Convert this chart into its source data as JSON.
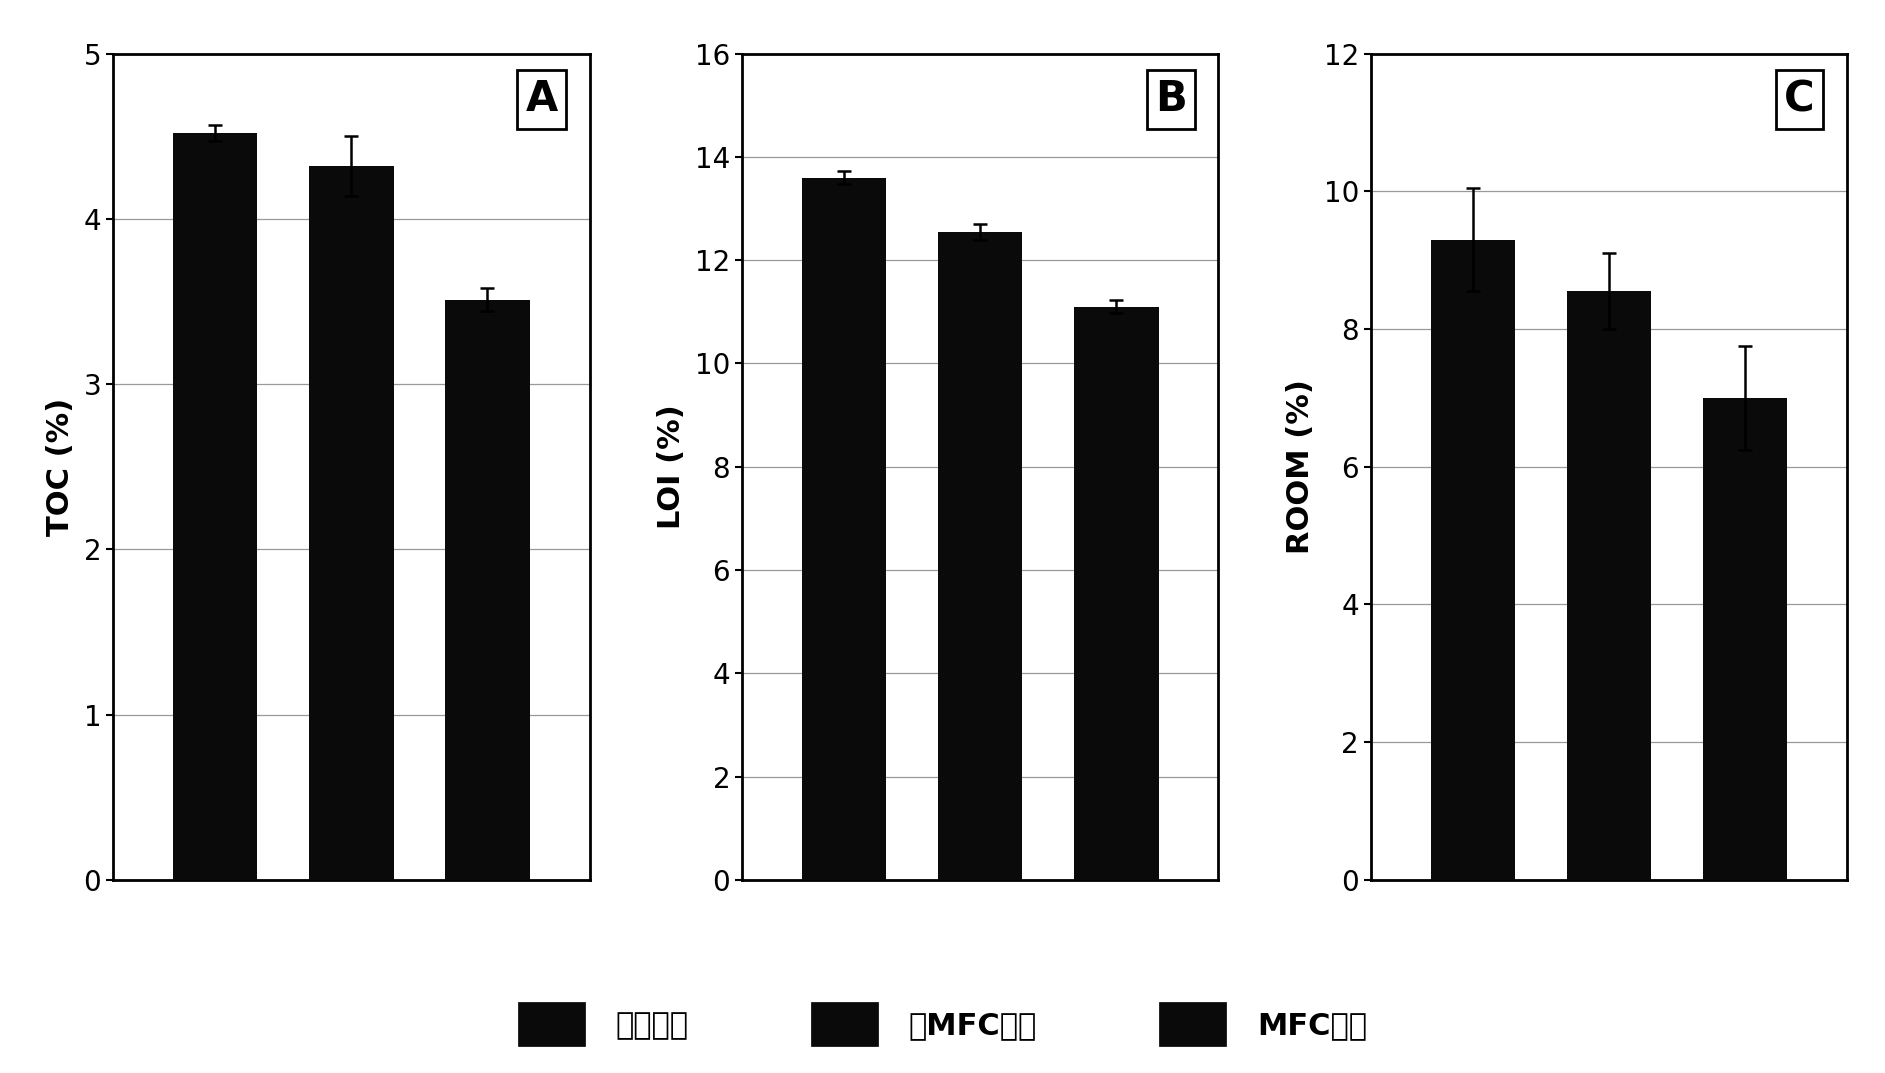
{
  "panel_A": {
    "label": "A",
    "ylabel": "TOC (%)",
    "ylim": [
      0,
      5
    ],
    "yticks": [
      0,
      1,
      2,
      3,
      4,
      5
    ],
    "values": [
      4.52,
      4.32,
      3.51
    ],
    "errors": [
      0.05,
      0.18,
      0.07
    ]
  },
  "panel_B": {
    "label": "B",
    "ylabel": "LOI (%)",
    "ylim": [
      0,
      16
    ],
    "yticks": [
      0,
      2,
      4,
      6,
      8,
      10,
      12,
      14,
      16
    ],
    "values": [
      13.6,
      12.55,
      11.1
    ],
    "errors": [
      0.12,
      0.15,
      0.12
    ]
  },
  "panel_C": {
    "label": "C",
    "ylabel": "ROOM (%)",
    "ylim": [
      0,
      12
    ],
    "yticks": [
      0,
      2,
      4,
      6,
      8,
      10,
      12
    ],
    "values": [
      9.3,
      8.55,
      7.0
    ],
    "errors": [
      0.75,
      0.55,
      0.75
    ]
  },
  "bar_color": "#0a0a0a",
  "bar_width": 0.62,
  "x_positions": [
    1,
    2,
    3
  ],
  "xlim": [
    0.25,
    3.75
  ],
  "legend_labels": [
    "初始底泥",
    "无MFC底泥",
    "MFC底泥"
  ],
  "legend_colors": [
    "#0a0a0a",
    "#0a0a0a",
    "#0a0a0a"
  ],
  "background_color": "#ffffff",
  "grid_color": "#999999",
  "label_fontsize": 22,
  "tick_fontsize": 20,
  "panel_label_fontsize": 30,
  "legend_fontsize": 22,
  "capsize": 5,
  "elinewidth": 1.8,
  "capthick": 1.8
}
